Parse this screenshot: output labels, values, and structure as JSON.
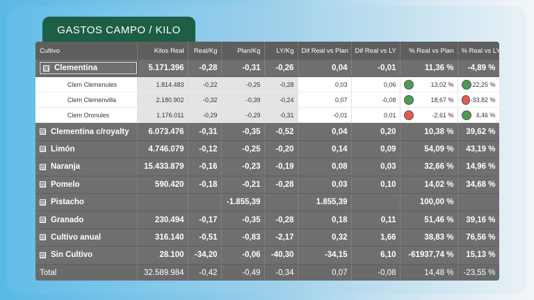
{
  "title": "GASTOS CAMPO / KILO",
  "colors": {
    "green": "#4e9a53",
    "red": "#e05a4e",
    "tab": "#1d5e45"
  },
  "headers": [
    "Cultivo",
    "Kilos Real",
    "Real/Kg",
    "Plan/Kg",
    "LY/Kg",
    "Dif Real vs Plan",
    "Dif Real vs LY",
    "% Real vs Plan",
    "% Real vs LY"
  ],
  "rows": {
    "clementina": {
      "name": "Clementina",
      "c": [
        "5.171.396",
        "-0,28",
        "-0,31",
        "-0,26",
        "0,04",
        "-0,01",
        "11,36 %",
        "-4,89 %"
      ]
    },
    "clemenules": {
      "name": "Clem Clemenules",
      "c": [
        "1.814.483",
        "-0,22",
        "-0,25",
        "-0,28",
        "0,03",
        "0,06",
        "13,02 %",
        "22,25 %"
      ],
      "d1": "green",
      "d2": "green"
    },
    "clemenvilla": {
      "name": "Clem Clemenvilla",
      "c": [
        "2.180.902",
        "-0,32",
        "-0,39",
        "-0,24",
        "0,07",
        "-0,08",
        "18,67 %",
        "-33,82 %"
      ],
      "d1": "green",
      "d2": "red"
    },
    "oronules": {
      "name": "Clem Oronules",
      "c": [
        "1.176.011",
        "-0,29",
        "-0,29",
        "-0,31",
        "-0,01",
        "0,01",
        "-2,61 %",
        "4,46 %"
      ],
      "d1": "red",
      "d2": "green"
    },
    "royalty": {
      "name": "Clementina c/royalty",
      "c": [
        "6.073.476",
        "-0,31",
        "-0,35",
        "-0,52",
        "0,04",
        "0,20",
        "10,38 %",
        "39,62 %"
      ]
    },
    "limon": {
      "name": "Limón",
      "c": [
        "4.746.079",
        "-0,12",
        "-0,25",
        "-0,20",
        "0,14",
        "0,09",
        "54,09 %",
        "43,19 %"
      ]
    },
    "naranja": {
      "name": "Naranja",
      "c": [
        "15.433.879",
        "-0,16",
        "-0,23",
        "-0,19",
        "0,08",
        "0,03",
        "32,66 %",
        "14,96 %"
      ]
    },
    "pomelo": {
      "name": "Pomelo",
      "c": [
        "590.420",
        "-0,18",
        "-0,21",
        "-0,28",
        "0,03",
        "0,10",
        "14,02 %",
        "34,68 %"
      ]
    },
    "pistacho": {
      "name": "Pistacho",
      "c": [
        "",
        "",
        "-1.855,39",
        "",
        "1.855,39",
        "",
        "100,00 %",
        ""
      ]
    },
    "granado": {
      "name": "Granado",
      "c": [
        "230.494",
        "-0,17",
        "-0,35",
        "-0,28",
        "0,18",
        "0,11",
        "51,46 %",
        "39,16 %"
      ]
    },
    "anual": {
      "name": "Cultivo anual",
      "c": [
        "316.140",
        "-0,51",
        "-0,83",
        "-2,17",
        "0,32",
        "1,66",
        "38,83 %",
        "76,56 %"
      ]
    },
    "sin": {
      "name": "Sin Cultivo",
      "c": [
        "28.100",
        "-34,20",
        "-0,06",
        "-40,30",
        "-34,15",
        "6,10",
        "-61937,74 %",
        "15,13 %"
      ]
    },
    "total": {
      "name": "Total",
      "c": [
        "32.589.984",
        "-0,42",
        "-0,49",
        "-0,34",
        "0,07",
        "-0,08",
        "14,48 %",
        "-23,55 %"
      ]
    }
  },
  "toggle": {
    "expanded": "⊟",
    "collapsed": "⊞"
  }
}
